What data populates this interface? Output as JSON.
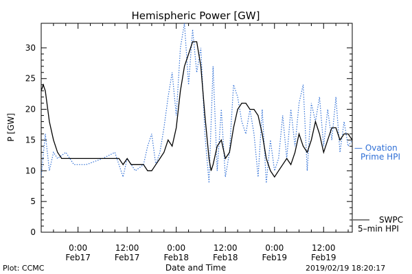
{
  "chart_data": {
    "type": "line",
    "title": "Hemispheric Power [GW]",
    "ylabel": "P [GW]",
    "xlabel": "Date and Time",
    "ylim": [
      0,
      34
    ],
    "yticks": [
      0,
      5,
      10,
      15,
      20,
      25,
      30
    ],
    "xlim": [
      "2019-02-16 15:00",
      "2019-02-19 19:00"
    ],
    "xticks": [
      {
        "t": "2019-02-17 00:00",
        "time": "0:00",
        "date": "Feb17"
      },
      {
        "t": "2019-02-17 12:00",
        "time": "12:00",
        "date": "Feb17"
      },
      {
        "t": "2019-02-18 00:00",
        "time": "0:00",
        "date": "Feb18"
      },
      {
        "t": "2019-02-18 12:00",
        "time": "12:00",
        "date": "Feb18"
      },
      {
        "t": "2019-02-19 00:00",
        "time": "0:00",
        "date": "Feb19"
      },
      {
        "t": "2019-02-19 12:00",
        "time": "12:00",
        "date": "Feb19"
      }
    ],
    "grid": false,
    "series": [
      {
        "name": "SWPC 5-min HPI",
        "color": "#000000",
        "style": "solid",
        "points": [
          [
            "2019-02-16 15:00",
            23
          ],
          [
            "2019-02-16 15:30",
            24
          ],
          [
            "2019-02-16 16:00",
            23
          ],
          [
            "2019-02-16 17:00",
            18
          ],
          [
            "2019-02-16 18:00",
            15
          ],
          [
            "2019-02-16 19:00",
            13
          ],
          [
            "2019-02-16 20:00",
            12
          ],
          [
            "2019-02-17 00:00",
            12
          ],
          [
            "2019-02-17 10:00",
            12
          ],
          [
            "2019-02-17 11:00",
            11
          ],
          [
            "2019-02-17 12:00",
            12
          ],
          [
            "2019-02-17 13:00",
            11
          ],
          [
            "2019-02-17 16:00",
            11
          ],
          [
            "2019-02-17 17:00",
            10
          ],
          [
            "2019-02-17 18:00",
            10
          ],
          [
            "2019-02-17 19:00",
            11
          ],
          [
            "2019-02-17 20:00",
            12
          ],
          [
            "2019-02-17 21:00",
            13
          ],
          [
            "2019-02-17 22:00",
            15
          ],
          [
            "2019-02-17 23:00",
            14
          ],
          [
            "2019-02-18 00:00",
            17
          ],
          [
            "2019-02-18 01:00",
            23
          ],
          [
            "2019-02-18 02:00",
            27
          ],
          [
            "2019-02-18 03:00",
            29
          ],
          [
            "2019-02-18 04:00",
            31
          ],
          [
            "2019-02-18 05:00",
            31
          ],
          [
            "2019-02-18 06:00",
            27
          ],
          [
            "2019-02-18 07:00",
            19
          ],
          [
            "2019-02-18 08:00",
            12
          ],
          [
            "2019-02-18 08:30",
            10
          ],
          [
            "2019-02-18 09:00",
            11
          ],
          [
            "2019-02-18 10:00",
            14
          ],
          [
            "2019-02-18 11:00",
            15
          ],
          [
            "2019-02-18 12:00",
            12
          ],
          [
            "2019-02-18 13:00",
            13
          ],
          [
            "2019-02-18 14:00",
            17
          ],
          [
            "2019-02-18 15:00",
            20
          ],
          [
            "2019-02-18 16:00",
            21
          ],
          [
            "2019-02-18 17:00",
            21
          ],
          [
            "2019-02-18 18:00",
            20
          ],
          [
            "2019-02-18 19:00",
            20
          ],
          [
            "2019-02-18 20:00",
            19
          ],
          [
            "2019-02-18 21:00",
            16
          ],
          [
            "2019-02-18 22:00",
            12
          ],
          [
            "2019-02-18 23:00",
            10
          ],
          [
            "2019-02-19 00:00",
            9
          ],
          [
            "2019-02-19 01:00",
            10
          ],
          [
            "2019-02-19 02:00",
            11
          ],
          [
            "2019-02-19 03:00",
            12
          ],
          [
            "2019-02-19 04:00",
            11
          ],
          [
            "2019-02-19 05:00",
            13
          ],
          [
            "2019-02-19 06:00",
            16
          ],
          [
            "2019-02-19 07:00",
            14
          ],
          [
            "2019-02-19 08:00",
            13
          ],
          [
            "2019-02-19 09:00",
            15
          ],
          [
            "2019-02-19 10:00",
            18
          ],
          [
            "2019-02-19 11:00",
            16
          ],
          [
            "2019-02-19 12:00",
            13
          ],
          [
            "2019-02-19 13:00",
            15
          ],
          [
            "2019-02-19 14:00",
            17
          ],
          [
            "2019-02-19 15:00",
            17
          ],
          [
            "2019-02-19 16:00",
            15
          ],
          [
            "2019-02-19 17:00",
            16
          ],
          [
            "2019-02-19 18:00",
            16
          ],
          [
            "2019-02-19 19:00",
            15
          ]
        ]
      },
      {
        "name": "Ovation Prime HPI",
        "color": "#2f6fd6",
        "style": "dotted",
        "points": [
          [
            "2019-02-16 15:00",
            9
          ],
          [
            "2019-02-16 16:00",
            16
          ],
          [
            "2019-02-16 17:00",
            10
          ],
          [
            "2019-02-16 18:00",
            13
          ],
          [
            "2019-02-16 19:00",
            12
          ],
          [
            "2019-02-16 21:00",
            13
          ],
          [
            "2019-02-16 23:00",
            11
          ],
          [
            "2019-02-17 02:00",
            11
          ],
          [
            "2019-02-17 06:00",
            12
          ],
          [
            "2019-02-17 09:00",
            13
          ],
          [
            "2019-02-17 11:00",
            9
          ],
          [
            "2019-02-17 12:00",
            12
          ],
          [
            "2019-02-17 14:00",
            10
          ],
          [
            "2019-02-17 16:00",
            11
          ],
          [
            "2019-02-17 17:00",
            14
          ],
          [
            "2019-02-17 18:00",
            16
          ],
          [
            "2019-02-17 19:00",
            11
          ],
          [
            "2019-02-17 20:00",
            13
          ],
          [
            "2019-02-17 21:00",
            17
          ],
          [
            "2019-02-17 22:00",
            22
          ],
          [
            "2019-02-17 23:00",
            26
          ],
          [
            "2019-02-18 00:00",
            19
          ],
          [
            "2019-02-18 01:00",
            30
          ],
          [
            "2019-02-18 02:00",
            34
          ],
          [
            "2019-02-18 03:00",
            24
          ],
          [
            "2019-02-18 04:00",
            33
          ],
          [
            "2019-02-18 05:00",
            26
          ],
          [
            "2019-02-18 06:00",
            30
          ],
          [
            "2019-02-18 07:00",
            16
          ],
          [
            "2019-02-18 08:00",
            8
          ],
          [
            "2019-02-18 09:00",
            27
          ],
          [
            "2019-02-18 10:00",
            10
          ],
          [
            "2019-02-18 11:00",
            20
          ],
          [
            "2019-02-18 12:00",
            9
          ],
          [
            "2019-02-18 13:00",
            13
          ],
          [
            "2019-02-18 14:00",
            24
          ],
          [
            "2019-02-18 15:00",
            22
          ],
          [
            "2019-02-18 16:00",
            18
          ],
          [
            "2019-02-18 17:00",
            16
          ],
          [
            "2019-02-18 18:00",
            20
          ],
          [
            "2019-02-18 19:00",
            16
          ],
          [
            "2019-02-18 20:00",
            9
          ],
          [
            "2019-02-18 21:00",
            20
          ],
          [
            "2019-02-18 22:00",
            8
          ],
          [
            "2019-02-18 23:00",
            15
          ],
          [
            "2019-02-19 00:00",
            10
          ],
          [
            "2019-02-19 01:00",
            12
          ],
          [
            "2019-02-19 02:00",
            19
          ],
          [
            "2019-02-19 03:00",
            12
          ],
          [
            "2019-02-19 04:00",
            20
          ],
          [
            "2019-02-19 05:00",
            14
          ],
          [
            "2019-02-19 06:00",
            21
          ],
          [
            "2019-02-19 07:00",
            24
          ],
          [
            "2019-02-19 08:00",
            10
          ],
          [
            "2019-02-19 09:00",
            21
          ],
          [
            "2019-02-19 10:00",
            18
          ],
          [
            "2019-02-19 11:00",
            22
          ],
          [
            "2019-02-19 12:00",
            14
          ],
          [
            "2019-02-19 13:00",
            20
          ],
          [
            "2019-02-19 14:00",
            15
          ],
          [
            "2019-02-19 15:00",
            22
          ],
          [
            "2019-02-19 16:00",
            13
          ],
          [
            "2019-02-19 17:00",
            18
          ],
          [
            "2019-02-19 18:00",
            14
          ],
          [
            "2019-02-19 19:00",
            15
          ]
        ]
      }
    ],
    "legend": {
      "placement": "right",
      "ovation_line1": "— Ovation",
      "ovation_line2": "Prime HPI",
      "swpc_line1": "SWPC",
      "swpc_line2": "5–min HPI"
    }
  },
  "footer": {
    "plot_credit": "Plot: CCMC",
    "timestamp": "2019/02/19 18:20:17"
  }
}
